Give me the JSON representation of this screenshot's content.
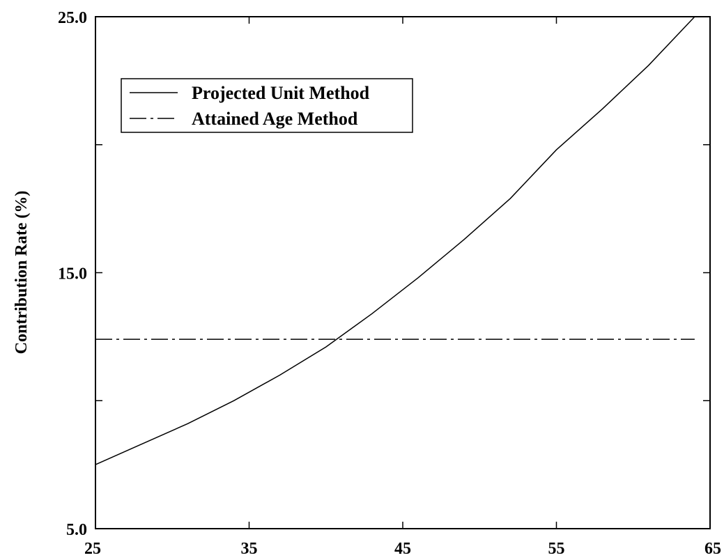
{
  "chart_data": {
    "type": "line",
    "title": "",
    "xlabel": "",
    "ylabel": "Contribution Rate (%)",
    "xlim": [
      25,
      65
    ],
    "ylim": [
      5.0,
      25.0
    ],
    "x_ticks": [
      25,
      35,
      45,
      55,
      65
    ],
    "x_tick_labels": [
      "25",
      "35",
      "45",
      "55",
      "65"
    ],
    "y_ticks": [
      5,
      15,
      25
    ],
    "y_tick_labels": [
      "5.0",
      "15.0",
      "25.0"
    ],
    "y_minor_ticks": [
      10,
      20
    ],
    "grid": false,
    "legend_position": "top-left",
    "series": [
      {
        "name": "Projected Unit Method",
        "style": "solid",
        "color": "#000000",
        "x": [
          25,
          28,
          31,
          34,
          37,
          40,
          43,
          46,
          49,
          52,
          55,
          58,
          61,
          64
        ],
        "y": [
          7.5,
          8.3,
          9.1,
          10.0,
          11.0,
          12.1,
          13.4,
          14.8,
          16.3,
          17.9,
          19.8,
          21.4,
          23.1,
          25.0
        ]
      },
      {
        "name": "Attained Age Method",
        "style": "dash-dot",
        "color": "#000000",
        "x": [
          25,
          64
        ],
        "y": [
          12.4,
          12.4
        ]
      }
    ]
  }
}
